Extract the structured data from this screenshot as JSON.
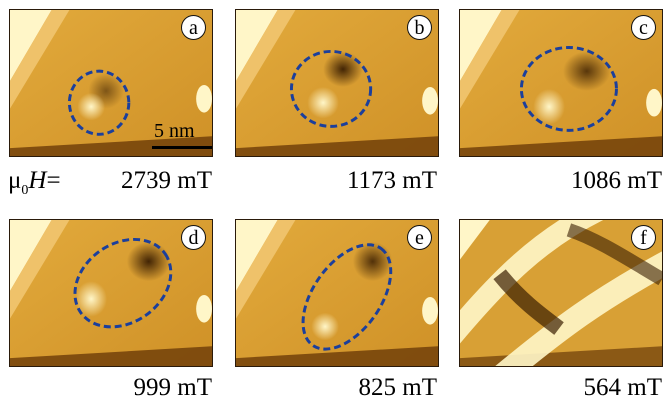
{
  "panels": [
    {
      "letter": "a",
      "field": "2739 mT"
    },
    {
      "letter": "b",
      "field": "1173 mT"
    },
    {
      "letter": "c",
      "field": "1086 mT"
    },
    {
      "letter": "d",
      "field": "999 mT"
    },
    {
      "letter": "e",
      "field": "825 mT"
    },
    {
      "letter": "f",
      "field": "564 mT"
    }
  ],
  "field_label": {
    "symbol": "μ",
    "subscript": "0",
    "variable": "H",
    "equals": "="
  },
  "scale_bar": {
    "label": "5 nm"
  },
  "colors": {
    "background": "#d79b2a",
    "highlight": "#fff6c8",
    "dark": "#4a2a06",
    "ellipse": "#1b3f9c"
  }
}
